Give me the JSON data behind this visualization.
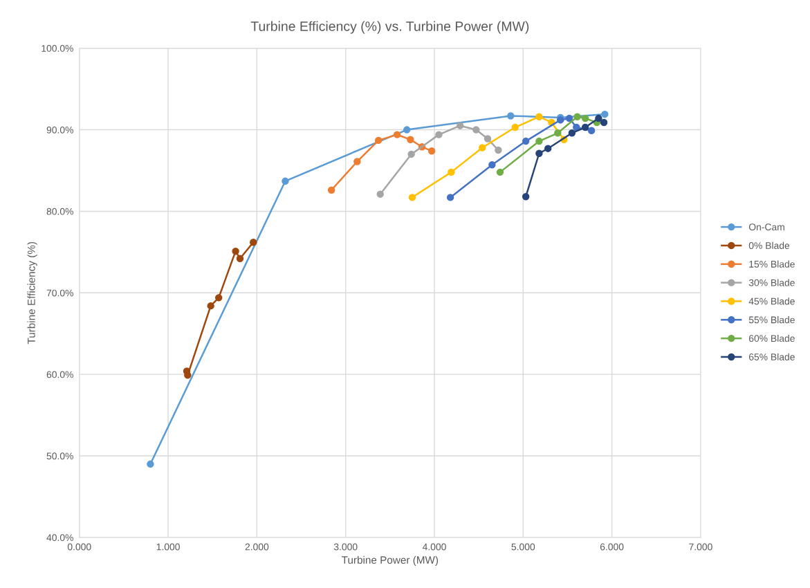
{
  "chart_data": {
    "type": "line",
    "title": "Turbine Efficiency (%) vs. Turbine Power (MW)",
    "xlabel": "Turbine Power (MW)",
    "ylabel": "Turbine Efficiency (%)",
    "xlim": [
      0,
      7
    ],
    "ylim": [
      40,
      100
    ],
    "xticks": [
      {
        "value": 0,
        "label": "0.000"
      },
      {
        "value": 1,
        "label": "1.000"
      },
      {
        "value": 2,
        "label": "2.000"
      },
      {
        "value": 3,
        "label": "3.000"
      },
      {
        "value": 4,
        "label": "4.000"
      },
      {
        "value": 5,
        "label": "5.000"
      },
      {
        "value": 6,
        "label": "6.000"
      },
      {
        "value": 7,
        "label": "7.000"
      }
    ],
    "yticks": [
      {
        "value": 40,
        "label": "40.0%"
      },
      {
        "value": 50,
        "label": "50.0%"
      },
      {
        "value": 60,
        "label": "60.0%"
      },
      {
        "value": 70,
        "label": "70.0%"
      },
      {
        "value": 80,
        "label": "80.0%"
      },
      {
        "value": 90,
        "label": "90.0%"
      },
      {
        "value": 100,
        "label": "100.0%"
      }
    ],
    "grid": true,
    "legend": "right",
    "marker": "circle",
    "series": [
      {
        "name": "On-Cam",
        "color": "#5b9bd5",
        "x": [
          0.8,
          2.32,
          3.69,
          4.86,
          5.42,
          5.92
        ],
        "values": [
          49.0,
          83.7,
          90.0,
          91.7,
          91.5,
          91.9
        ]
      },
      {
        "name": "0% Blade",
        "color": "#9e480e",
        "x": [
          1.21,
          1.22,
          1.48,
          1.57,
          1.76,
          1.81,
          1.96
        ],
        "values": [
          60.4,
          59.9,
          68.4,
          69.4,
          75.1,
          74.2,
          76.2
        ]
      },
      {
        "name": "15% Blade",
        "color": "#ed7d31",
        "x": [
          2.84,
          3.13,
          3.37,
          3.58,
          3.73,
          3.86,
          3.97
        ],
        "values": [
          82.6,
          86.1,
          88.7,
          89.4,
          88.8,
          87.9,
          87.4
        ]
      },
      {
        "name": "30% Blade",
        "color": "#a5a5a5",
        "x": [
          3.39,
          3.74,
          4.05,
          4.29,
          4.47,
          4.6,
          4.72
        ],
        "values": [
          82.1,
          87.0,
          89.4,
          90.5,
          90.0,
          88.9,
          87.5
        ]
      },
      {
        "name": "45% Blade",
        "color": "#ffc000",
        "x": [
          3.75,
          4.19,
          4.54,
          4.91,
          5.18,
          5.32,
          5.46
        ],
        "values": [
          81.7,
          84.8,
          87.8,
          90.3,
          91.6,
          90.9,
          88.8
        ]
      },
      {
        "name": "55% Blade",
        "color": "#4472c4",
        "x": [
          4.18,
          4.65,
          5.03,
          5.42,
          5.52,
          5.6,
          5.77
        ],
        "values": [
          81.7,
          85.7,
          88.6,
          91.2,
          91.4,
          90.3,
          89.9
        ]
      },
      {
        "name": "60% Blade",
        "color": "#70ad47",
        "x": [
          4.74,
          5.18,
          5.39,
          5.61,
          5.7,
          5.83
        ],
        "values": [
          84.8,
          88.6,
          89.6,
          91.6,
          91.4,
          90.9
        ]
      },
      {
        "name": "65% Blade",
        "color": "#264478",
        "x": [
          5.03,
          5.18,
          5.28,
          5.55,
          5.7,
          5.85,
          5.91
        ],
        "values": [
          81.8,
          87.1,
          87.7,
          89.6,
          90.3,
          91.4,
          90.9
        ]
      }
    ]
  }
}
